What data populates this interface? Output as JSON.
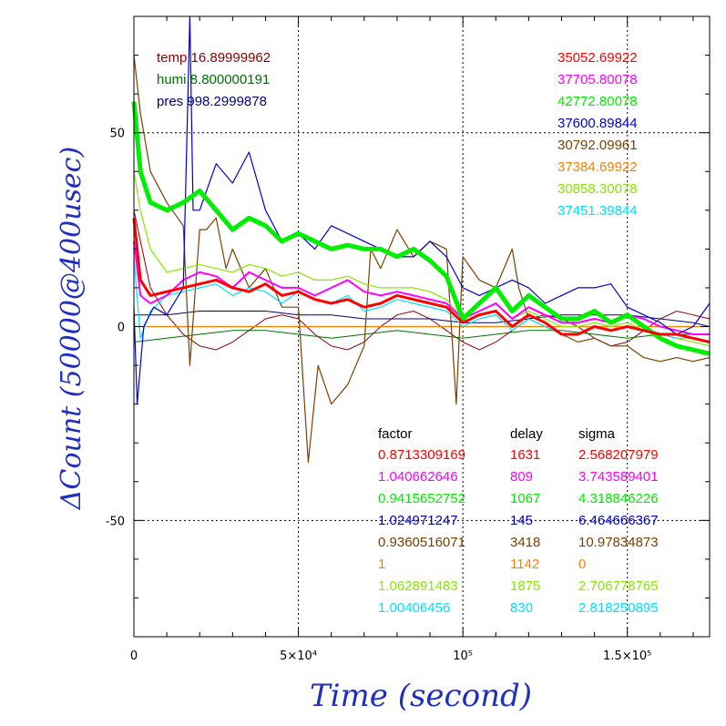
{
  "chart_data": {
    "type": "line",
    "xlabel": "Time (second)",
    "ylabel": "ΔCount (50000@400usec)",
    "xlim": [
      0,
      175000
    ],
    "ylim": [
      -80,
      80
    ],
    "grid": true,
    "x_ticks": [
      {
        "value": 0,
        "label": "0"
      },
      {
        "value": 50000,
        "label": "5×10⁴"
      },
      {
        "value": 100000,
        "label": "10⁵"
      },
      {
        "value": 150000,
        "label": "1.5×10⁵"
      }
    ],
    "y_ticks": [
      {
        "value": -50,
        "label": "-50"
      },
      {
        "value": 0,
        "label": "0"
      },
      {
        "value": 50,
        "label": "50"
      }
    ],
    "environment": [
      {
        "label": "temp",
        "value": "16.89999962",
        "color": "#8b0000"
      },
      {
        "label": "humi",
        "value": "8.800000191",
        "color": "#007000"
      },
      {
        "label": "pres",
        "value": "998.2999878",
        "color": "#00007a"
      }
    ],
    "counts": [
      "35052.69922",
      "37705.80078",
      "42772.80078",
      "37600.89844",
      "30792.09961",
      "37384.69922",
      "30858.30078",
      "37451.39844"
    ],
    "table_headers": [
      "factor",
      "delay",
      "sigma"
    ],
    "series": [
      {
        "color": "#ff0000",
        "factor": "0.8713309169",
        "delay": "1631",
        "sigma": "2.568207979",
        "x": [
          0,
          2000,
          5000,
          10000,
          15000,
          20000,
          25000,
          30000,
          35000,
          40000,
          45000,
          50000,
          55000,
          60000,
          65000,
          70000,
          75000,
          80000,
          85000,
          90000,
          95000,
          100000,
          105000,
          110000,
          115000,
          120000,
          125000,
          130000,
          135000,
          140000,
          145000,
          150000,
          155000,
          160000,
          165000,
          170000,
          175000
        ],
        "y": [
          28,
          12,
          8,
          9,
          10,
          11,
          12,
          10,
          9,
          11,
          8,
          9,
          7,
          6,
          7,
          5,
          6,
          8,
          7,
          6,
          5,
          1,
          3,
          4,
          0,
          3,
          1,
          -2,
          -2,
          0,
          -1,
          0,
          -1,
          -2,
          -2,
          -3,
          -4
        ]
      },
      {
        "color": "#ff00ff",
        "factor": "1.040662646",
        "delay": "809",
        "sigma": "3.743589401",
        "x": [
          0,
          2000,
          5000,
          10000,
          15000,
          20000,
          25000,
          30000,
          35000,
          40000,
          45000,
          50000,
          55000,
          60000,
          65000,
          70000,
          75000,
          80000,
          85000,
          90000,
          95000,
          100000,
          105000,
          110000,
          115000,
          120000,
          125000,
          130000,
          135000,
          140000,
          145000,
          150000,
          155000,
          160000,
          165000,
          170000,
          175000
        ],
        "y": [
          22,
          8,
          6,
          8,
          12,
          14,
          13,
          10,
          14,
          12,
          10,
          10,
          8,
          10,
          12,
          9,
          8,
          9,
          8,
          7,
          6,
          2,
          4,
          6,
          2,
          5,
          3,
          1,
          1,
          2,
          1,
          3,
          2,
          0,
          -1,
          -2,
          -2
        ]
      },
      {
        "color": "#00ee00",
        "factor": "0.9415652752",
        "delay": "1067",
        "sigma": "4.318846226",
        "x": [
          0,
          2000,
          5000,
          10000,
          15000,
          20000,
          25000,
          30000,
          35000,
          40000,
          45000,
          50000,
          55000,
          60000,
          65000,
          70000,
          75000,
          80000,
          85000,
          90000,
          95000,
          100000,
          105000,
          110000,
          115000,
          120000,
          125000,
          130000,
          135000,
          140000,
          145000,
          150000,
          155000,
          160000,
          165000,
          170000,
          175000
        ],
        "y": [
          58,
          40,
          32,
          30,
          32,
          35,
          30,
          25,
          28,
          26,
          22,
          24,
          22,
          20,
          21,
          20,
          20,
          18,
          20,
          17,
          13,
          2,
          6,
          10,
          4,
          8,
          5,
          2,
          2,
          4,
          1,
          3,
          0,
          -3,
          -5,
          -6,
          -7
        ]
      },
      {
        "color": "#0000d0",
        "factor": "1.024971247",
        "delay": "145",
        "sigma": "6.464666367",
        "x": [
          0,
          1000,
          3000,
          6000,
          10000,
          15000,
          17000,
          18000,
          20000,
          25000,
          30000,
          35000,
          40000,
          45000,
          50000,
          55000,
          60000,
          65000,
          70000,
          75000,
          80000,
          85000,
          90000,
          95000,
          100000,
          105000,
          110000,
          115000,
          120000,
          125000,
          130000,
          135000,
          140000,
          145000,
          150000,
          155000,
          160000,
          165000,
          170000,
          175000
        ],
        "y": [
          5,
          -20,
          0,
          5,
          3,
          10,
          80,
          30,
          30,
          42,
          37,
          45,
          30,
          22,
          24,
          20,
          26,
          24,
          22,
          20,
          18,
          18,
          22,
          18,
          10,
          8,
          10,
          12,
          10,
          6,
          8,
          10,
          10,
          11,
          5,
          3,
          1,
          -2,
          0,
          6
        ]
      },
      {
        "color": "#7a4000",
        "factor": "0.9360516071",
        "delay": "3418",
        "sigma": "10.97834873",
        "x": [
          0,
          2000,
          5000,
          10000,
          15000,
          17000,
          20000,
          22000,
          25000,
          28000,
          30000,
          35000,
          40000,
          45000,
          50000,
          53000,
          56000,
          60000,
          65000,
          70000,
          72000,
          75000,
          80000,
          85000,
          90000,
          95000,
          98000,
          100000,
          105000,
          110000,
          115000,
          117000,
          120000,
          125000,
          130000,
          135000,
          140000,
          145000,
          150000,
          155000,
          160000,
          165000,
          170000,
          175000
        ],
        "y": [
          70,
          55,
          40,
          32,
          26,
          -10,
          25,
          25,
          28,
          15,
          20,
          10,
          15,
          5,
          5,
          -35,
          -10,
          -20,
          -15,
          -5,
          20,
          15,
          25,
          18,
          22,
          20,
          -20,
          18,
          12,
          10,
          20,
          10,
          2,
          0,
          -2,
          -4,
          -3,
          -5,
          -5,
          -8,
          -9,
          -8,
          -9,
          -8
        ]
      },
      {
        "color": "#ff8000",
        "factor": "1",
        "delay": "1142",
        "sigma": "0",
        "x": [
          0,
          175000
        ],
        "y": [
          0,
          0
        ]
      },
      {
        "color": "#88e800",
        "factor": "1.062891483",
        "delay": "1875",
        "sigma": "2.706778765",
        "x": [
          0,
          2000,
          5000,
          10000,
          15000,
          20000,
          25000,
          30000,
          35000,
          40000,
          45000,
          50000,
          55000,
          60000,
          65000,
          70000,
          75000,
          80000,
          85000,
          90000,
          95000,
          100000,
          105000,
          110000,
          115000,
          120000,
          125000,
          130000,
          135000,
          140000,
          145000,
          150000,
          155000,
          160000,
          165000,
          170000,
          175000
        ],
        "y": [
          40,
          30,
          20,
          14,
          15,
          16,
          15,
          14,
          16,
          15,
          13,
          14,
          12,
          12,
          13,
          11,
          10,
          10,
          10,
          9,
          7,
          2,
          4,
          6,
          2,
          4,
          2,
          0,
          0,
          1,
          0,
          1,
          -1,
          -2,
          -3,
          -4,
          -5
        ]
      },
      {
        "color": "#00e0ff",
        "factor": "1.00406456",
        "delay": "830",
        "sigma": "2.818250895",
        "x": [
          0,
          2000,
          5000,
          10000,
          15000,
          20000,
          25000,
          30000,
          35000,
          40000,
          45000,
          50000,
          55000,
          60000,
          65000,
          70000,
          75000,
          80000,
          85000,
          90000,
          95000,
          100000,
          105000,
          110000,
          115000,
          120000,
          125000,
          130000,
          135000,
          140000,
          145000,
          150000,
          155000,
          160000,
          165000,
          170000,
          175000
        ],
        "y": [
          18,
          -3,
          4,
          8,
          9,
          10,
          11,
          8,
          10,
          9,
          6,
          9,
          7,
          6,
          8,
          4,
          5,
          7,
          6,
          5,
          4,
          0,
          2,
          3,
          -1,
          2,
          0,
          -2,
          -2,
          0,
          -1,
          0,
          -1,
          -2,
          -3,
          -3,
          -4
        ]
      }
    ],
    "environment_curves": [
      {
        "color": "#8b0000",
        "x": [
          0,
          5000,
          10000,
          15000,
          20000,
          25000,
          30000,
          35000,
          40000,
          45000,
          50000,
          55000,
          60000,
          65000,
          70000,
          75000,
          80000,
          85000,
          90000,
          95000,
          100000,
          105000,
          110000,
          115000,
          120000,
          125000,
          130000,
          135000,
          140000,
          145000,
          150000,
          155000,
          160000,
          165000,
          170000,
          175000
        ],
        "y": [
          30,
          10,
          3,
          -2,
          -5,
          -6,
          -4,
          -1,
          2,
          3,
          2,
          -2,
          -5,
          -6,
          -4,
          0,
          3,
          4,
          2,
          -1,
          -4,
          -6,
          -4,
          -1,
          2,
          3,
          2,
          0,
          -3,
          -5,
          -4,
          -1,
          2,
          4,
          3,
          2
        ]
      },
      {
        "color": "#007000",
        "x": [
          0,
          10000,
          20000,
          30000,
          40000,
          50000,
          60000,
          70000,
          80000,
          90000,
          100000,
          110000,
          120000,
          130000,
          140000,
          150000,
          160000,
          170000,
          175000
        ],
        "y": [
          -4,
          -3,
          -2,
          -1,
          -1,
          -2,
          -3,
          -2,
          -1,
          -2,
          -3,
          -2,
          -1,
          -1,
          -2,
          -3,
          -2,
          -2,
          -2
        ]
      },
      {
        "color": "#00007a",
        "x": [
          0,
          10000,
          20000,
          30000,
          40000,
          50000,
          60000,
          70000,
          80000,
          90000,
          100000,
          110000,
          120000,
          130000,
          140000,
          150000,
          160000,
          170000,
          175000
        ],
        "y": [
          3,
          3,
          4,
          4,
          4,
          3,
          3,
          2,
          2,
          2,
          1,
          1,
          2,
          3,
          3,
          3,
          2,
          1,
          0
        ]
      }
    ]
  }
}
